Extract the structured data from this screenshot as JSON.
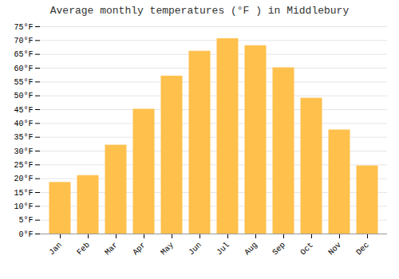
{
  "chart_data": {
    "type": "bar",
    "title": "Average monthly temperatures (°F ) in Middlebury",
    "categories": [
      "Jan",
      "Feb",
      "Mar",
      "Apr",
      "May",
      "Jun",
      "Jul",
      "Aug",
      "Sep",
      "Oct",
      "Nov",
      "Dec"
    ],
    "values": [
      18.5,
      21.0,
      32.0,
      45.0,
      57.0,
      66.0,
      70.5,
      68.0,
      60.0,
      49.0,
      37.5,
      24.5
    ],
    "color": "#FFC04C",
    "ylim": [
      0,
      75
    ],
    "yticks": [
      {
        "value": 0,
        "label": "0°F"
      },
      {
        "value": 5,
        "label": "5°F"
      },
      {
        "value": 10,
        "label": "10°F"
      },
      {
        "value": 15,
        "label": "15°F"
      },
      {
        "value": 20,
        "label": "20°F"
      },
      {
        "value": 25,
        "label": "25°F"
      },
      {
        "value": 30,
        "label": "30°F"
      },
      {
        "value": 35,
        "label": "35°F"
      },
      {
        "value": 40,
        "label": "40°F"
      },
      {
        "value": 45,
        "label": "45°F"
      },
      {
        "value": 50,
        "label": "50°F"
      },
      {
        "value": 55,
        "label": "55°F"
      },
      {
        "value": 60,
        "label": "60°F"
      },
      {
        "value": 65,
        "label": "65°F"
      },
      {
        "value": 70,
        "label": "70°F"
      },
      {
        "value": 75,
        "label": "75°F"
      }
    ],
    "grid": true
  }
}
